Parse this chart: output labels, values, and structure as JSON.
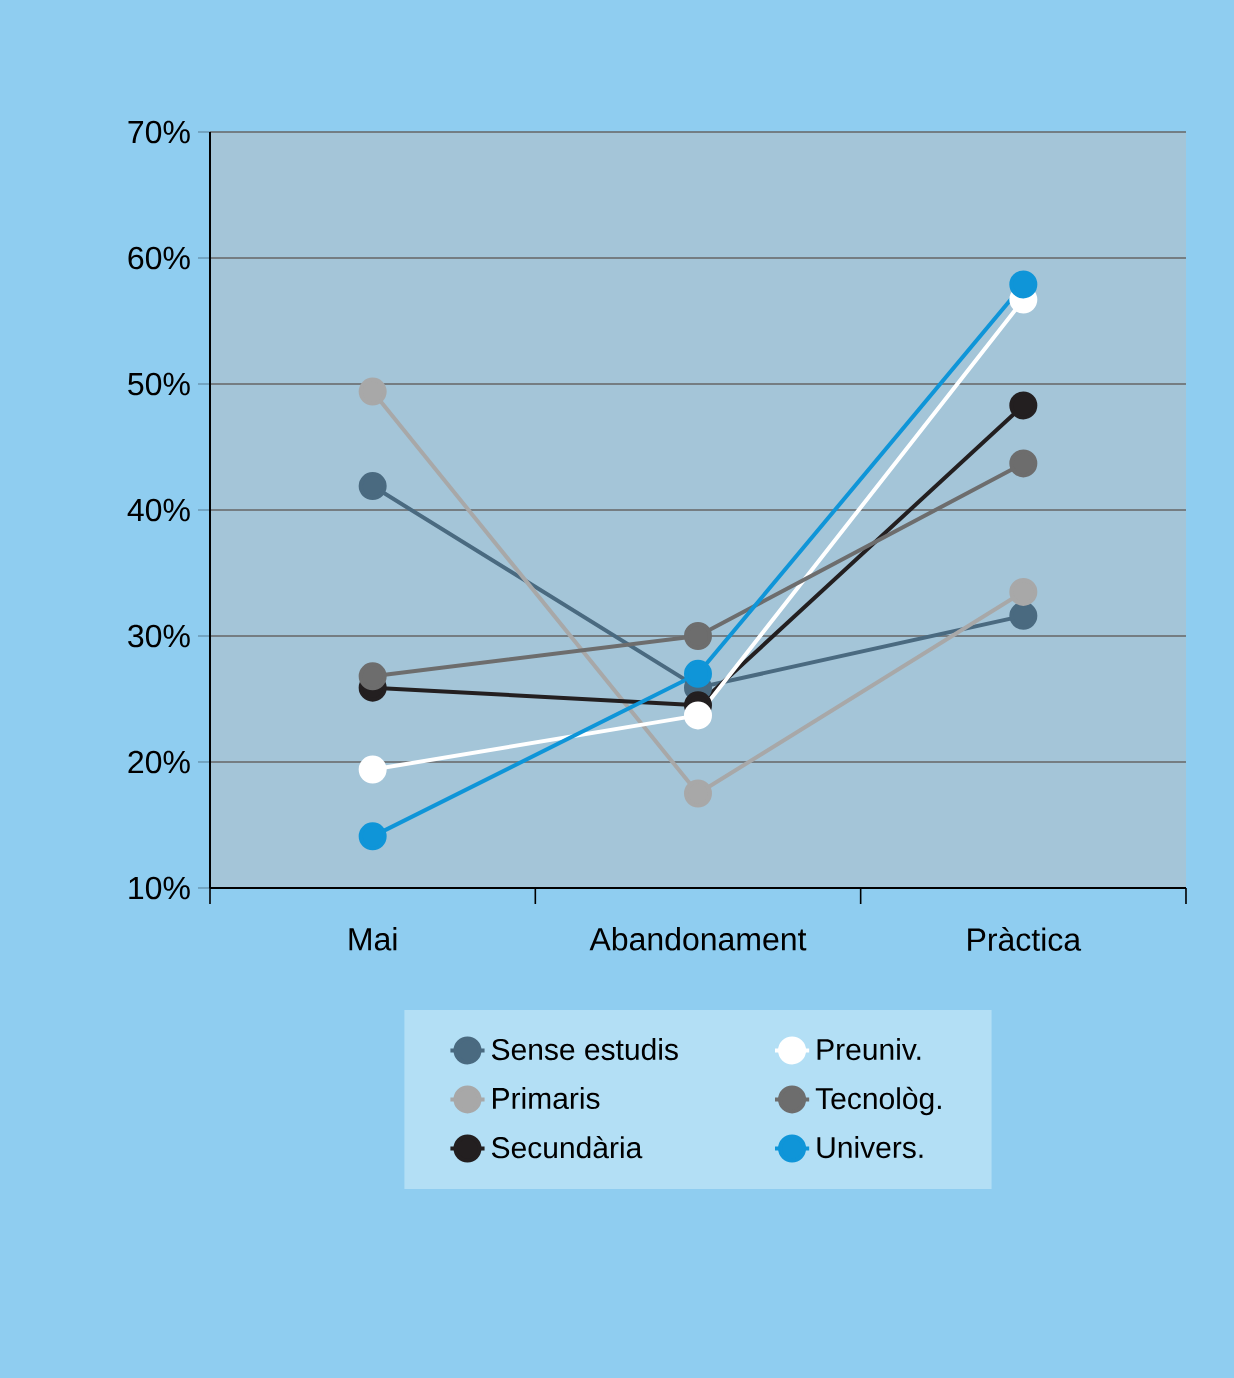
{
  "chart_data": {
    "type": "line",
    "categories": [
      "Mai",
      "Abandonament",
      "Pràctica"
    ],
    "series": [
      {
        "name": "Sense estudis",
        "color": "#4a6a80",
        "values": [
          41.9,
          25.9,
          31.6
        ]
      },
      {
        "name": "Primaris",
        "color": "#a8a8a8",
        "values": [
          49.4,
          17.5,
          33.5
        ]
      },
      {
        "name": "Secundària",
        "color": "#231f20",
        "values": [
          25.9,
          24.5,
          48.3
        ]
      },
      {
        "name": "Preuniv.",
        "color": "#ffffff",
        "values": [
          19.4,
          23.7,
          56.7
        ]
      },
      {
        "name": "Tecnològ.",
        "color": "#6d6d6d",
        "values": [
          26.8,
          30.0,
          43.7
        ]
      },
      {
        "name": "Univers.",
        "color": "#0f95d8",
        "values": [
          14.1,
          27.0,
          57.9
        ]
      }
    ],
    "ylim": [
      10,
      70
    ],
    "yticks": [
      {
        "value": 10,
        "label": "10%"
      },
      {
        "value": 20,
        "label": "20%"
      },
      {
        "value": 30,
        "label": "30%"
      },
      {
        "value": 40,
        "label": "40%"
      },
      {
        "value": 50,
        "label": "50%"
      },
      {
        "value": 60,
        "label": "60%"
      },
      {
        "value": 70,
        "label": "70%"
      }
    ],
    "grid": "y",
    "legend": "bottom",
    "marker": "circle",
    "line_style": "solid"
  }
}
